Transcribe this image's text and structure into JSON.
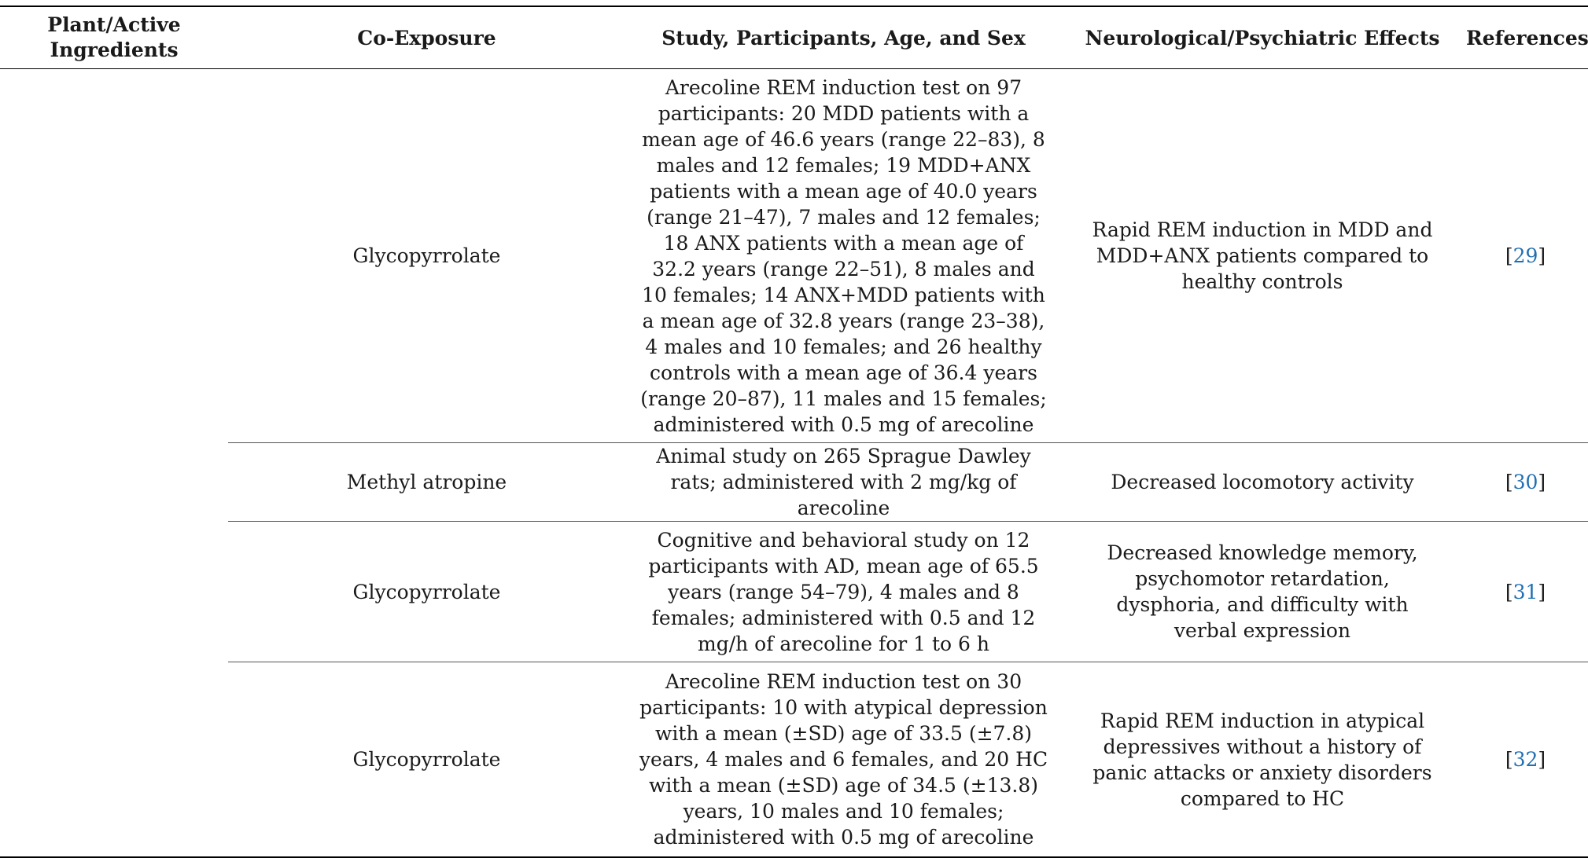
{
  "table": {
    "headers": {
      "plant": "Plant/Active\nIngredients",
      "coexposure": "Co-Exposure",
      "study": "Study, Participants, Age, and Sex",
      "effects": "Neurological/Psychiatric Effects",
      "references": "References"
    },
    "rows": [
      {
        "coexposure": "Glycopyrrolate",
        "study": "Arecoline REM induction test on 97 participants: 20 MDD patients with a mean age of 46.6 years (range 22–83), 8 males and 12 females; 19 MDD+ANX patients with a mean age of 40.0 years (range 21–47), 7 males and 12 females; 18 ANX patients with a mean age of 32.2 years (range 22–51), 8 males and 10 females; 14 ANX+MDD patients with a mean age of 32.8 years (range 23–38), 4 males and 10 females; and 26 healthy controls with a mean age of 36.4 years (range 20–87), 11 males and 15 females; administered with 0.5 mg of arecoline",
        "effects": "Rapid REM induction in MDD and MDD+ANX patients compared to healthy controls",
        "reference": "29"
      },
      {
        "coexposure": "Methyl atropine",
        "study": "Animal study on 265 Sprague Dawley rats; administered with 2 mg/kg of arecoline",
        "effects": "Decreased locomotory activity",
        "reference": "30"
      },
      {
        "coexposure": "Glycopyrrolate",
        "study": "Cognitive and behavioral study on 12 participants with AD, mean age of 65.5 years (range 54–79), 4 males and 8 females; administered with 0.5 and 12 mg/h of arecoline for 1 to 6 h",
        "effects": "Decreased knowledge memory, psychomotor retardation, dysphoria, and difficulty with verbal expression",
        "reference": "31"
      },
      {
        "coexposure": "Glycopyrrolate",
        "study": "Arecoline REM induction test on 30 participants: 10 with atypical depression with a mean (±SD) age of 33.5 (±7.8) years, 4 males and 6 females, and 20 HC with a mean (±SD) age of 34.5 (±13.8) years, 10 males and 10 females; administered with 0.5 mg of arecoline",
        "effects": "Rapid REM induction in atypical depressives without a history of panic attacks or anxiety disorders compared to HC",
        "reference": "32"
      }
    ]
  },
  "colors": {
    "link": "#1f6fb2",
    "rule": "#000000",
    "text": "#1a1a1a"
  }
}
